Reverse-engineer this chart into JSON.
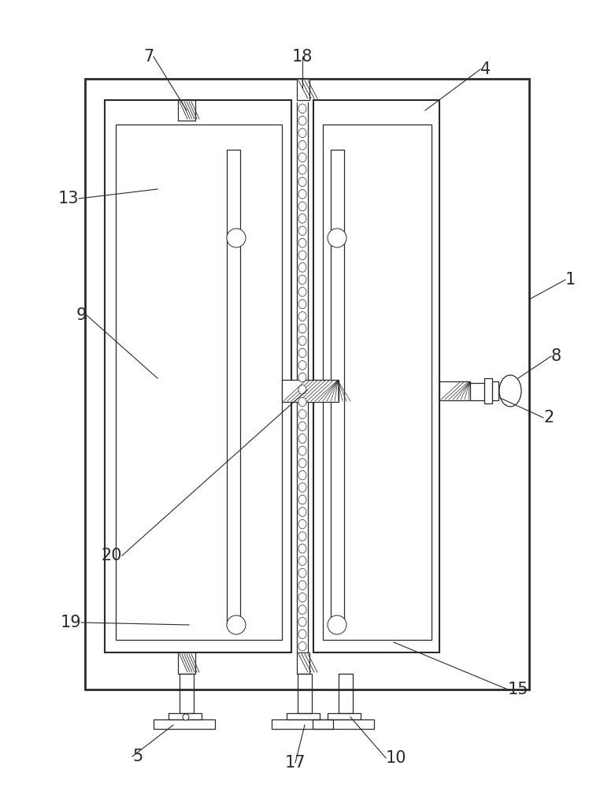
{
  "bg_color": "#ffffff",
  "line_color": "#2a2a2a",
  "fig_width": 7.81,
  "fig_height": 10.0,
  "dpi": 100
}
